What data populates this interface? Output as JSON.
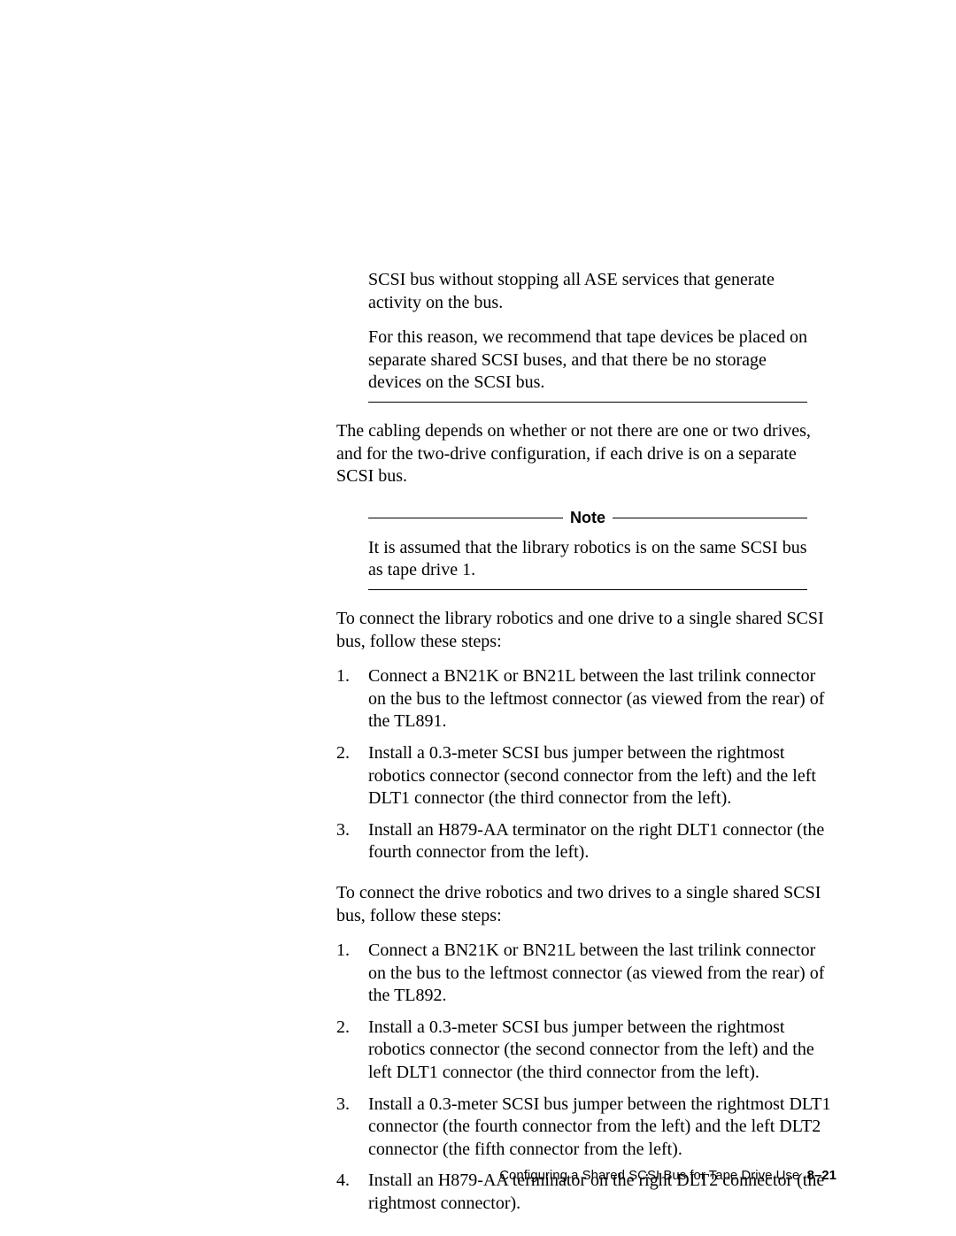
{
  "callout1": {
    "p1": "SCSI bus without stopping all ASE services that generate activity on the bus.",
    "p2": "For this reason, we recommend that tape devices be placed on separate shared SCSI buses, and that there be no storage devices on the SCSI bus."
  },
  "para_cabling": "The cabling depends on whether or not there are one or two drives, and for the two-drive configuration, if each drive is on a separate SCSI bus.",
  "note": {
    "label": "Note",
    "body": "It is assumed that the library robotics is on the same SCSI bus as tape drive 1."
  },
  "intro_list1": "To connect the library robotics and one drive to a single shared SCSI bus, follow these steps:",
  "list1": [
    {
      "n": "1.",
      "t": "Connect a BN21K or BN21L between the last trilink connector on the bus to the leftmost connector (as viewed from the rear) of the TL891."
    },
    {
      "n": "2.",
      "t": "Install a 0.3-meter SCSI bus jumper between the rightmost robotics connector (second connector from the left) and the left DLT1 connector (the third connector from the left)."
    },
    {
      "n": "3.",
      "t": "Install an H879-AA terminator on the right DLT1 connector (the fourth connector from the left)."
    }
  ],
  "intro_list2": "To connect the drive robotics and two drives to a single shared SCSI bus, follow these steps:",
  "list2": [
    {
      "n": "1.",
      "t": "Connect a BN21K or BN21L between the last trilink connector on the bus to the leftmost connector (as viewed from the rear) of the TL892."
    },
    {
      "n": "2.",
      "t": "Install a 0.3-meter SCSI bus jumper between the rightmost robotics connector (the second connector from the left) and the left DLT1 connector (the third connector from the left)."
    },
    {
      "n": "3.",
      "t": "Install a 0.3-meter SCSI bus jumper between the rightmost DLT1 connector (the fourth connector from the left) and the left DLT2 connector (the fifth connector from the left)."
    },
    {
      "n": "4.",
      "t": "Install an H879-AA terminator on the right DLT2 connector (the rightmost connector)."
    }
  ],
  "footer": {
    "title": "Configuring a Shared SCSI Bus for Tape Drive Use",
    "page": "8–21"
  }
}
